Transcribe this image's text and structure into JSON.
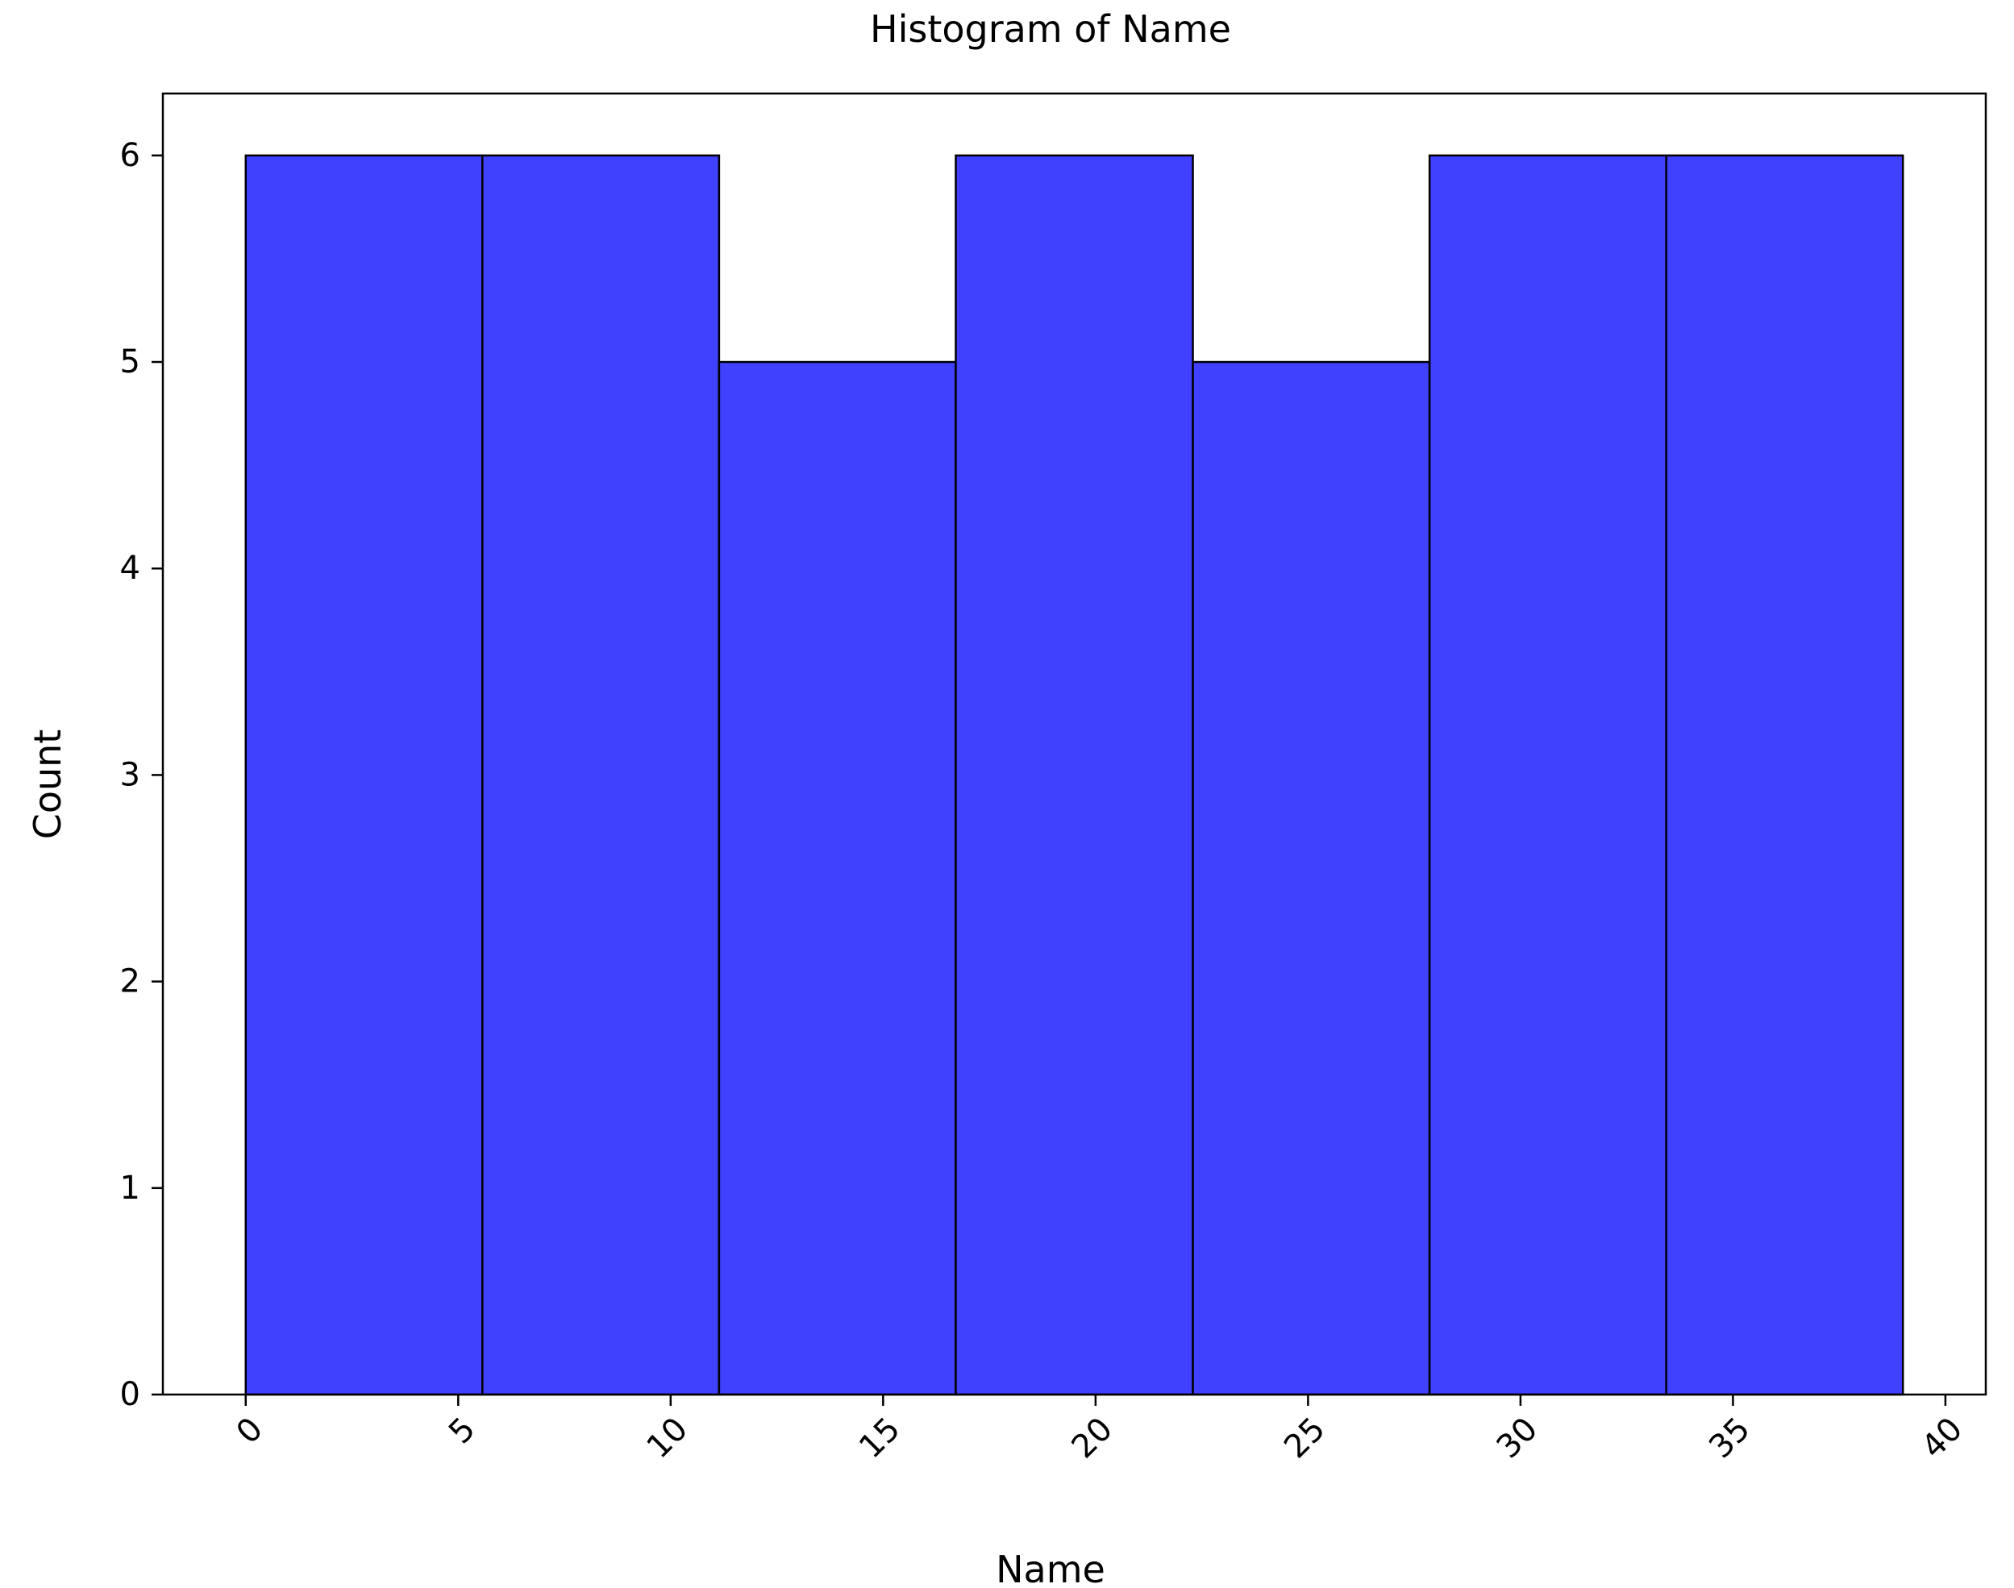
{
  "chart_data": {
    "type": "bar",
    "subtype": "histogram",
    "title": "Histogram of Name",
    "xlabel": "Name",
    "ylabel": "Count",
    "bins": [
      {
        "start": 0.0,
        "end": 5.57,
        "count": 6
      },
      {
        "start": 5.57,
        "end": 11.14,
        "count": 6
      },
      {
        "start": 11.14,
        "end": 16.71,
        "count": 5
      },
      {
        "start": 16.71,
        "end": 22.29,
        "count": 6
      },
      {
        "start": 22.29,
        "end": 27.86,
        "count": 5
      },
      {
        "start": 27.86,
        "end": 33.43,
        "count": 6
      },
      {
        "start": 33.43,
        "end": 39.0,
        "count": 6
      }
    ],
    "xlim": [
      -1.95,
      40.95
    ],
    "ylim": [
      0,
      6.3
    ],
    "xticks": [
      {
        "value": 0,
        "label": "0"
      },
      {
        "value": 5,
        "label": "5"
      },
      {
        "value": 10,
        "label": "10"
      },
      {
        "value": 15,
        "label": "15"
      },
      {
        "value": 20,
        "label": "20"
      },
      {
        "value": 25,
        "label": "25"
      },
      {
        "value": 30,
        "label": "30"
      },
      {
        "value": 35,
        "label": "35"
      },
      {
        "value": 40,
        "label": "40"
      }
    ],
    "yticks": [
      {
        "value": 0,
        "label": "0"
      },
      {
        "value": 1,
        "label": "1"
      },
      {
        "value": 2,
        "label": "2"
      },
      {
        "value": 3,
        "label": "3"
      },
      {
        "value": 4,
        "label": "4"
      },
      {
        "value": 5,
        "label": "5"
      },
      {
        "value": 6,
        "label": "6"
      }
    ],
    "x_tick_rotation": 45,
    "bar_color": "#4040ff",
    "edge_color": "#000000",
    "grid": false,
    "legend": "none"
  }
}
